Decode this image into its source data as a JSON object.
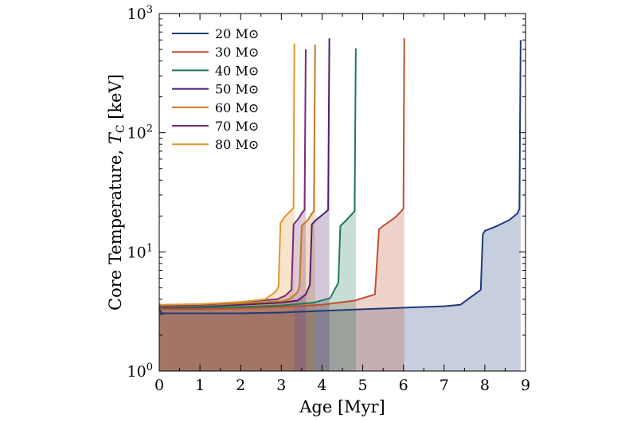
{
  "chart_data": {
    "type": "area",
    "title": "",
    "xlabel": "Age [Myr]",
    "ylabel": "Core Temperature, T_C [keV]",
    "ylabel_prefix": "Core Temperature, ",
    "ylabel_symbol": "T",
    "ylabel_subscript": "C",
    "ylabel_unit": " [keV]",
    "xlim": [
      0,
      9
    ],
    "ylim": [
      1,
      1000
    ],
    "yscale": "log",
    "xticks": [
      0,
      1,
      2,
      3,
      4,
      5,
      6,
      7,
      8,
      9
    ],
    "yticks": [
      {
        "value": 1,
        "base": "10",
        "exp": "0"
      },
      {
        "value": 10,
        "base": "10",
        "exp": "1"
      },
      {
        "value": 100,
        "base": "10",
        "exp": "2"
      },
      {
        "value": 1000,
        "base": "10",
        "exp": "3"
      }
    ],
    "legend_position": "top-left",
    "mass_unit": "M⊙",
    "series": [
      {
        "name": "20 M⊙",
        "mass": "20",
        "color": "#1f3a7a",
        "points": [
          [
            0.0,
            3.4
          ],
          [
            0.05,
            3.05
          ],
          [
            1,
            3.05
          ],
          [
            2,
            3.05
          ],
          [
            3,
            3.1
          ],
          [
            4,
            3.2
          ],
          [
            5,
            3.3
          ],
          [
            6,
            3.4
          ],
          [
            7,
            3.5
          ],
          [
            7.4,
            3.6
          ],
          [
            7.9,
            4.8
          ],
          [
            7.95,
            14
          ],
          [
            8.0,
            15
          ],
          [
            8.3,
            16.5
          ],
          [
            8.6,
            18.5
          ],
          [
            8.8,
            21
          ],
          [
            8.85,
            23
          ],
          [
            8.88,
            600
          ]
        ]
      },
      {
        "name": "30 M⊙",
        "mass": "30",
        "color": "#c0502e",
        "points": [
          [
            0.0,
            3.5
          ],
          [
            0.05,
            3.3
          ],
          [
            1,
            3.3
          ],
          [
            2,
            3.35
          ],
          [
            3,
            3.45
          ],
          [
            4,
            3.6
          ],
          [
            4.8,
            3.9
          ],
          [
            5.3,
            4.4
          ],
          [
            5.4,
            15.5
          ],
          [
            5.5,
            16.5
          ],
          [
            5.8,
            19.5
          ],
          [
            5.95,
            22
          ],
          [
            6.0,
            23
          ],
          [
            6.02,
            620
          ]
        ]
      },
      {
        "name": "40 M⊙",
        "mass": "40",
        "color": "#1e7a58",
        "points": [
          [
            0.0,
            3.5
          ],
          [
            0.05,
            3.4
          ],
          [
            1,
            3.4
          ],
          [
            2,
            3.45
          ],
          [
            3,
            3.55
          ],
          [
            3.8,
            3.75
          ],
          [
            4.2,
            4.1
          ],
          [
            4.4,
            5.5
          ],
          [
            4.45,
            16.5
          ],
          [
            4.6,
            18.5
          ],
          [
            4.75,
            21
          ],
          [
            4.8,
            22
          ],
          [
            4.83,
            510
          ]
        ]
      },
      {
        "name": "50 M⊙",
        "mass": "50",
        "color": "#4b1f70",
        "points": [
          [
            0.0,
            3.55
          ],
          [
            0.05,
            3.45
          ],
          [
            1,
            3.5
          ],
          [
            2,
            3.6
          ],
          [
            3,
            3.75
          ],
          [
            3.4,
            3.9
          ],
          [
            3.6,
            4.4
          ],
          [
            3.7,
            5.3
          ],
          [
            3.75,
            17
          ],
          [
            3.85,
            18.5
          ],
          [
            4.05,
            21
          ],
          [
            4.15,
            22.5
          ],
          [
            4.18,
            620
          ]
        ]
      },
      {
        "name": "60 M⊙",
        "mass": "60",
        "color": "#c07a1e",
        "points": [
          [
            0.0,
            3.6
          ],
          [
            0.05,
            3.5
          ],
          [
            1,
            3.55
          ],
          [
            2,
            3.7
          ],
          [
            3,
            3.85
          ],
          [
            3.2,
            4.0
          ],
          [
            3.4,
            4.6
          ],
          [
            3.45,
            5.3
          ],
          [
            3.5,
            16.5
          ],
          [
            3.65,
            18.5
          ],
          [
            3.75,
            21
          ],
          [
            3.8,
            22
          ],
          [
            3.83,
            550
          ]
        ]
      },
      {
        "name": "70 M⊙",
        "mass": "70",
        "color": "#7a2a7a",
        "points": [
          [
            0.0,
            3.6
          ],
          [
            0.05,
            3.55
          ],
          [
            1,
            3.6
          ],
          [
            2,
            3.8
          ],
          [
            2.9,
            4.0
          ],
          [
            3.1,
            4.3
          ],
          [
            3.25,
            4.8
          ],
          [
            3.3,
            17
          ],
          [
            3.42,
            19
          ],
          [
            3.52,
            21.5
          ],
          [
            3.57,
            22.5
          ],
          [
            3.6,
            500
          ]
        ]
      },
      {
        "name": "80 M⊙",
        "mass": "80",
        "color": "#e0982e",
        "points": [
          [
            0.0,
            3.65
          ],
          [
            0.05,
            3.6
          ],
          [
            1,
            3.65
          ],
          [
            2,
            3.8
          ],
          [
            2.6,
            4.0
          ],
          [
            2.85,
            4.6
          ],
          [
            2.93,
            5.1
          ],
          [
            2.98,
            17.5
          ],
          [
            3.1,
            20
          ],
          [
            3.25,
            22.5
          ],
          [
            3.3,
            23.5
          ],
          [
            3.32,
            560
          ]
        ]
      }
    ]
  }
}
